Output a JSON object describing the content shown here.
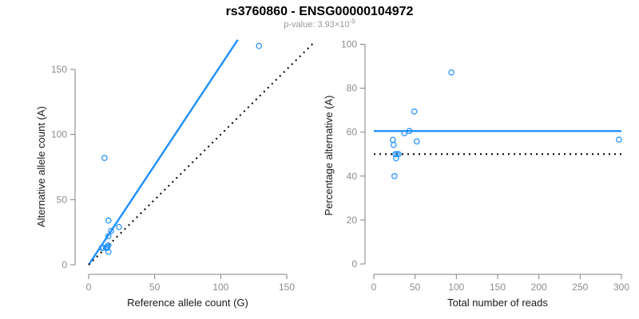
{
  "header": {
    "title": "rs3760860 - ENSG00000104972",
    "pvalue_label": "p-value: ",
    "pvalue_mantissa": "3.93",
    "pvalue_multiplier": "×",
    "pvalue_base": "10",
    "pvalue_exponent": "-9"
  },
  "colors": {
    "accent_blue": "#1e90ff",
    "axis_line": "#808080",
    "tick_label": "#8c8c8c",
    "axis_title": "#1a1a1a",
    "subtitle_grey": "#999999",
    "dotted_black": "#000000"
  },
  "chart_data": [
    {
      "type": "scatter",
      "panel": "left",
      "title": "",
      "xlabel": "Reference allele count (G)",
      "ylabel": "Alternative allele count (A)",
      "xlim": [
        0,
        150
      ],
      "ylim": [
        0,
        150
      ],
      "xticks": [
        0,
        50,
        100,
        150
      ],
      "yticks": [
        0,
        50,
        100,
        150
      ],
      "grid": false,
      "legend": "none",
      "marker": "open-circle",
      "points": [
        [
          12,
          82
        ],
        [
          15,
          34
        ],
        [
          23,
          29
        ],
        [
          17,
          26
        ],
        [
          15,
          22
        ],
        [
          10,
          13
        ],
        [
          11,
          13
        ],
        [
          13,
          13
        ],
        [
          14,
          14
        ],
        [
          15,
          15
        ],
        [
          14,
          13
        ],
        [
          15,
          10
        ],
        [
          129,
          168
        ]
      ],
      "lines": [
        {
          "name": "fitted-allelic-ratio",
          "style": "solid",
          "color": "#1e90ff",
          "slope": 1.53,
          "intercept": 0
        },
        {
          "name": "identity-y-equals-x",
          "style": "dotted",
          "color": "#000000",
          "slope": 1,
          "intercept": 0
        }
      ]
    },
    {
      "type": "scatter",
      "panel": "right",
      "title": "",
      "xlabel": "Total number of reads",
      "ylabel": "Percentage alternative (A)",
      "xlim": [
        0,
        300
      ],
      "ylim": [
        0,
        100
      ],
      "xticks": [
        0,
        50,
        100,
        150,
        200,
        250,
        300
      ],
      "yticks": [
        0,
        20,
        40,
        60,
        80,
        100
      ],
      "grid": false,
      "legend": "none",
      "marker": "open-circle",
      "points": [
        [
          94,
          87.2
        ],
        [
          49,
          69.4
        ],
        [
          52,
          55.8
        ],
        [
          43,
          60.5
        ],
        [
          37,
          59.5
        ],
        [
          23,
          56.5
        ],
        [
          24,
          54.2
        ],
        [
          26,
          50
        ],
        [
          28,
          50
        ],
        [
          30,
          50
        ],
        [
          27,
          48.1
        ],
        [
          25,
          40
        ],
        [
          297,
          56.6
        ]
      ],
      "lines": [
        {
          "name": "mean-percentage-alternative",
          "style": "solid",
          "color": "#1e90ff",
          "slope": 0,
          "intercept": 60.5
        },
        {
          "name": "expected-50-percent",
          "style": "dotted",
          "color": "#000000",
          "slope": 0,
          "intercept": 50
        }
      ]
    }
  ]
}
